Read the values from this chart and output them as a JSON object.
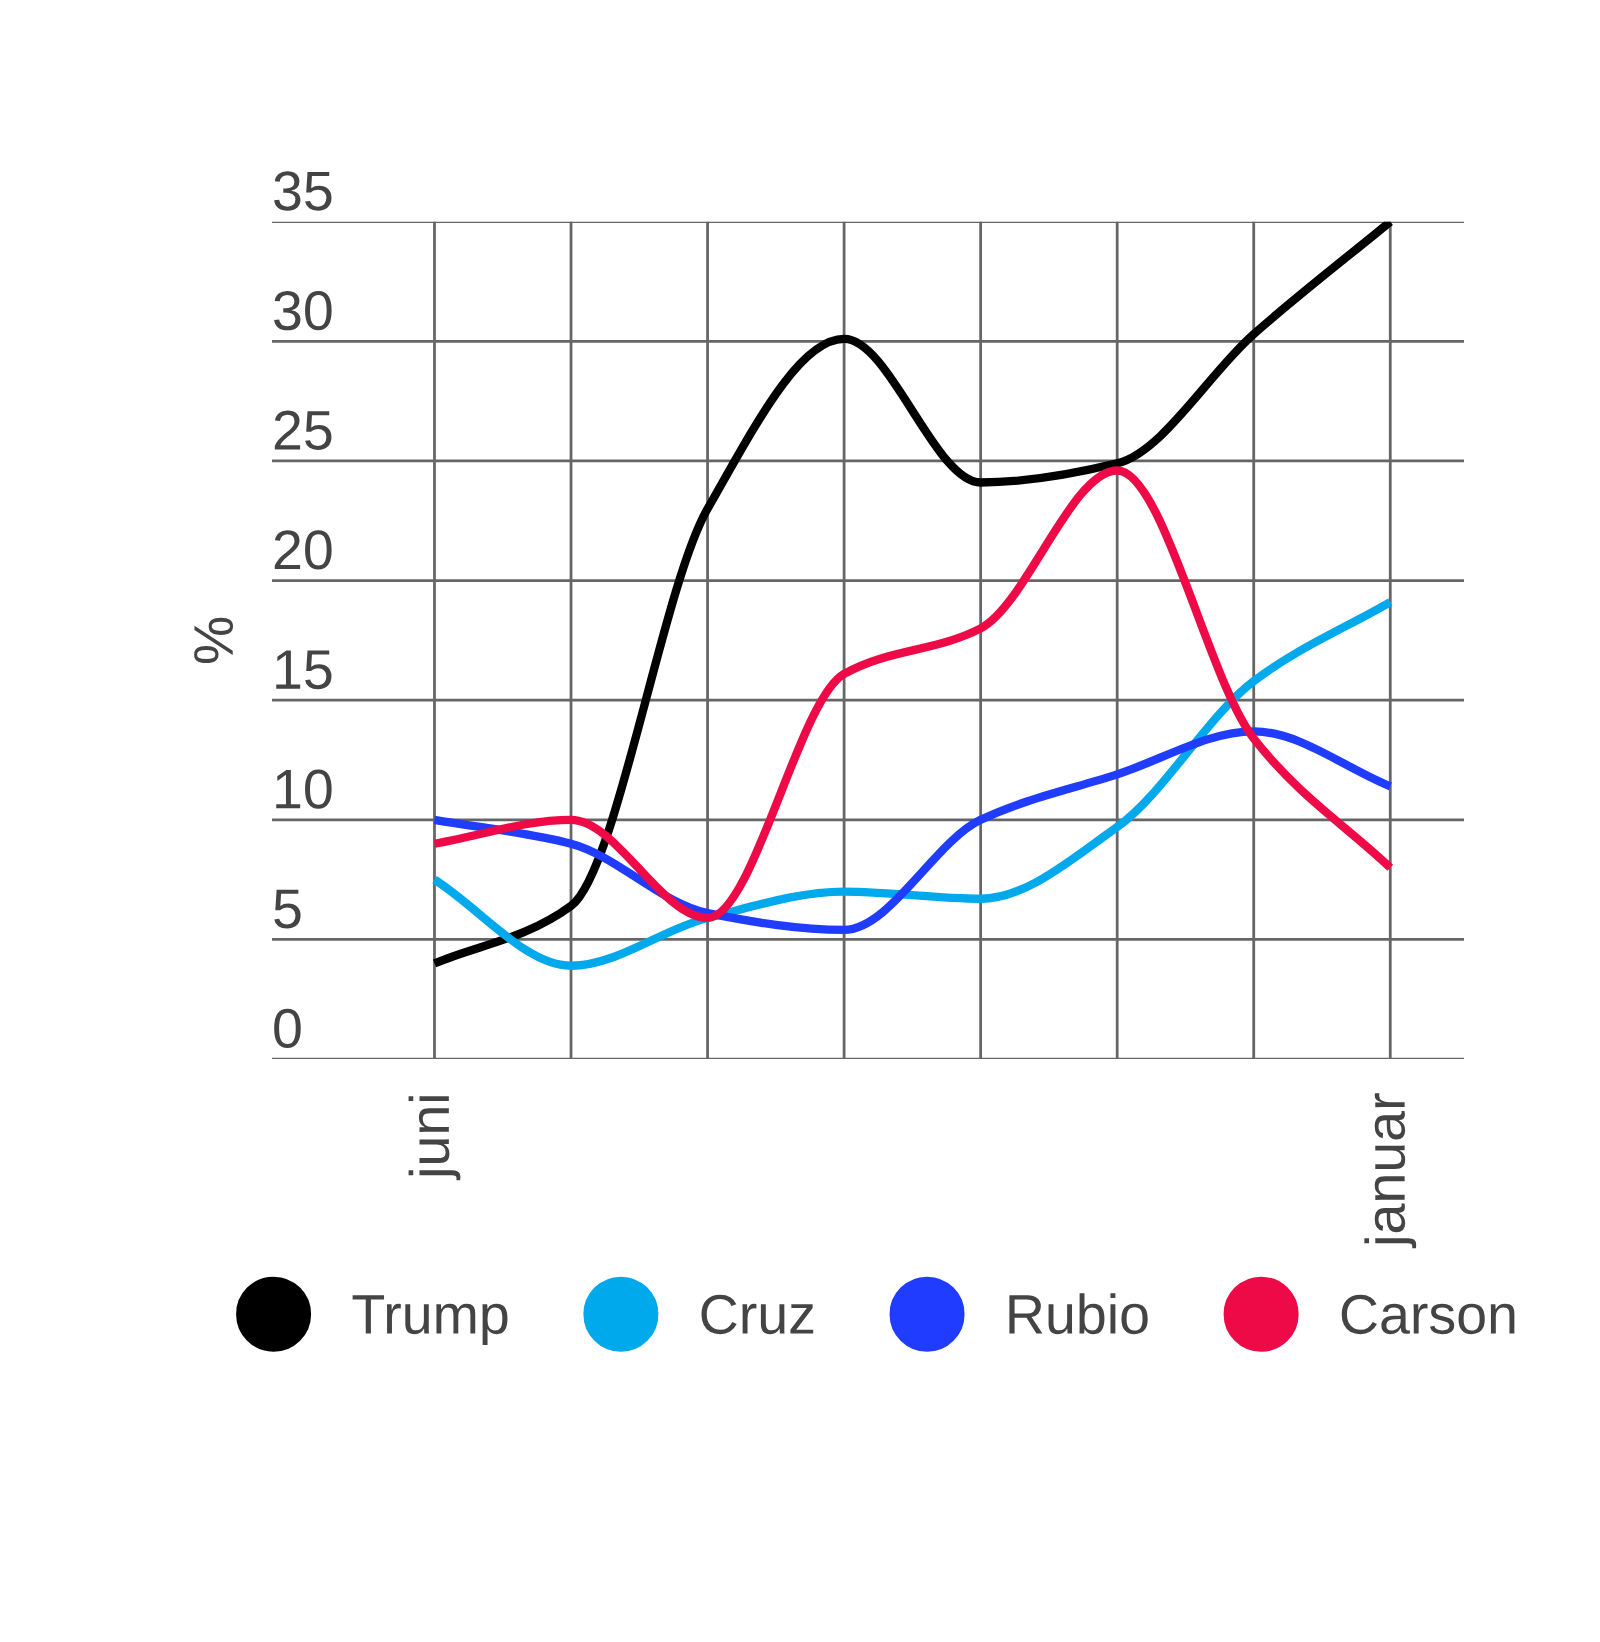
{
  "chart_data": {
    "type": "line",
    "ylabel": "%",
    "categories": [
      "juni",
      null,
      null,
      null,
      null,
      null,
      null,
      "januar"
    ],
    "series": [
      {
        "name": "Trump",
        "color": "#000000",
        "values": [
          4.0,
          6.4,
          23.0,
          30.1,
          24.1,
          24.9,
          30.3,
          35.0
        ]
      },
      {
        "name": "Cruz",
        "color": "#00a9ec",
        "values": [
          7.5,
          3.9,
          5.9,
          7.0,
          6.7,
          9.7,
          15.8,
          19.1
        ]
      },
      {
        "name": "Rubio",
        "color": "#1f3cff",
        "values": [
          10.0,
          9.0,
          6.1,
          5.4,
          10.0,
          11.9,
          13.7,
          11.4
        ]
      },
      {
        "name": "Carson",
        "color": "#ee0a47",
        "values": [
          9.0,
          10.0,
          5.9,
          16.1,
          18.0,
          24.6,
          13.4,
          8.0
        ]
      }
    ],
    "ylim": [
      0,
      35
    ],
    "yticks": [
      0,
      5,
      10,
      15,
      20,
      25,
      30,
      35
    ],
    "grid": true,
    "legend": "bottom",
    "marker": "none",
    "line_style": "solid"
  }
}
